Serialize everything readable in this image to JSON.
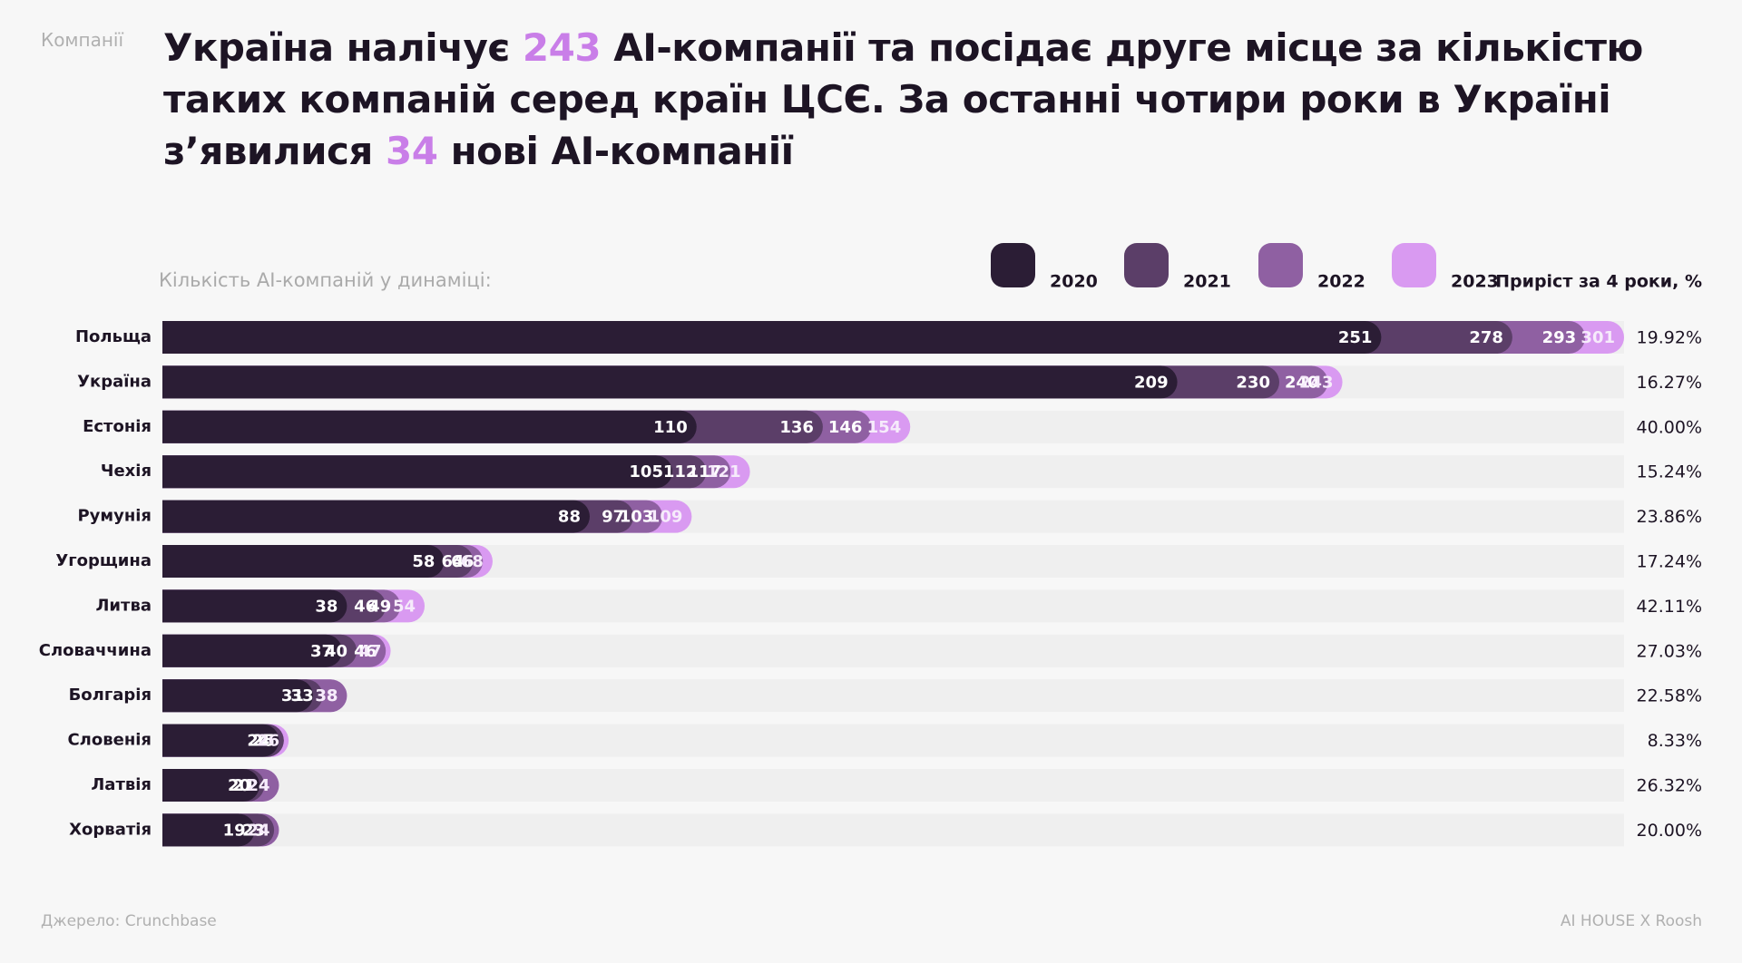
{
  "chart_data": {
    "type": "bar",
    "orientation": "horizontal",
    "section": "Компанії",
    "title_segments": [
      {
        "text": "Україна налічує ",
        "color": "#1d1424"
      },
      {
        "text": "243",
        "color": "#c97ee8"
      },
      {
        "text": " AI-компанії та посідає друге місце за кількістю таких компаній серед країн ЦСЄ. За останні чотири роки в Україні з’явилися ",
        "color": "#1d1424"
      },
      {
        "text": "34",
        "color": "#c97ee8"
      },
      {
        "text": " нові AI-компанії",
        "color": "#1d1424"
      }
    ],
    "subtitle": "Кількість AI-компаній у динаміці:",
    "growth_header": "Приріст за 4 роки, %",
    "categories": [
      "Польща",
      "Україна",
      "Естонія",
      "Чехія",
      "Румунія",
      "Угорщина",
      "Литва",
      "Словаччина",
      "Болгарія",
      "Словенія",
      "Латвія",
      "Хорватія"
    ],
    "series": [
      {
        "name": "2020",
        "color": "#2b1d35",
        "label_color": "#ffffff",
        "values": [
          251,
          209,
          110,
          105,
          88,
          58,
          38,
          37,
          31,
          24,
          20,
          19
        ]
      },
      {
        "name": "2021",
        "color": "#5b3e68",
        "label_color": "#ffffff",
        "values": [
          278,
          230,
          136,
          112,
          97,
          64,
          46,
          40,
          33,
          25,
          21,
          23
        ]
      },
      {
        "name": "2022",
        "color": "#8f60a2",
        "label_color": "#ffffff",
        "values": [
          293,
          240,
          146,
          117,
          103,
          66,
          49,
          46,
          38,
          25,
          24,
          24
        ]
      },
      {
        "name": "2023",
        "color": "#d99af1",
        "label_color": "#f6ebfb",
        "values": [
          301,
          243,
          154,
          121,
          109,
          68,
          54,
          47,
          38,
          26,
          24,
          24
        ]
      }
    ],
    "growth": [
      19.92,
      16.27,
      40.0,
      15.24,
      23.86,
      17.24,
      42.11,
      27.03,
      22.58,
      8.33,
      26.32,
      20.0
    ],
    "growth_labels": [
      "19.92%",
      "16.27%",
      "40.00%",
      "15.24%",
      "23.86%",
      "17.24%",
      "42.11%",
      "27.03%",
      "22.58%",
      "8.33%",
      "26.32%",
      "20.00%"
    ],
    "xlim": [
      0,
      301
    ],
    "source": "Джерело: Crunchbase",
    "brand": "AI HOUSE X Roosh"
  }
}
